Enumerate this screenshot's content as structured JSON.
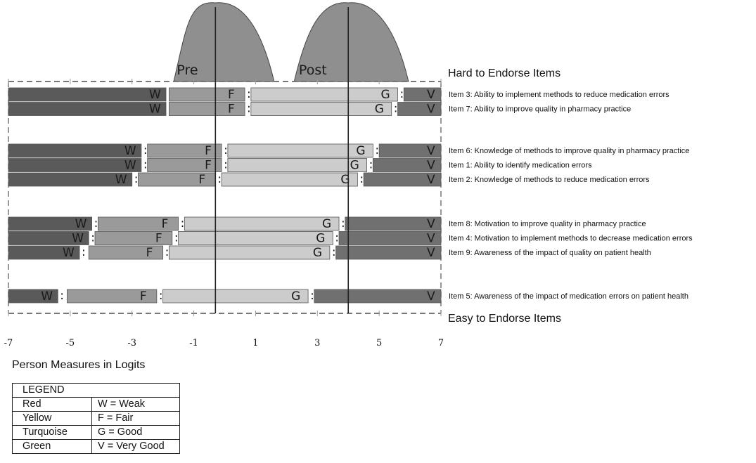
{
  "chart_data": {
    "type": "bar",
    "subtype": "stacked-horizontal-category-bands",
    "xlabel": "Person Measures in Logits",
    "xlim": [
      -7,
      7
    ],
    "xticks": [
      -7,
      -5,
      -3,
      -1,
      1,
      3,
      5,
      7
    ],
    "top_label": "Hard to Endorse Items",
    "bottom_label": "Easy to Endorse Items",
    "reference_lines": [
      {
        "name": "Pre",
        "x": -0.3
      },
      {
        "name": "Post",
        "x": 4.0
      }
    ],
    "distribution_labels": [
      "Pre",
      "Post"
    ],
    "groups": [
      {
        "items": [
          {
            "label": "Item 3: Ability to implement methods to reduce medication errors",
            "segments": [
              {
                "code": "W",
                "from": -7,
                "to": -1.9
              },
              {
                "code": "F",
                "from": -1.8,
                "to": 0.65
              },
              {
                "code": "G",
                "from": 0.85,
                "to": 5.6
              },
              {
                "code": "V",
                "from": 5.8,
                "to": 7
              }
            ]
          },
          {
            "label": "Item 7: Ability to improve quality in pharmacy practice",
            "segments": [
              {
                "code": "W",
                "from": -7,
                "to": -1.9
              },
              {
                "code": "F",
                "from": -1.8,
                "to": 0.65
              },
              {
                "code": "G",
                "from": 0.85,
                "to": 5.4
              },
              {
                "code": "V",
                "from": 5.6,
                "to": 7
              }
            ]
          }
        ]
      },
      {
        "items": [
          {
            "label": "Item 6: Knowledge of methods to improve quality in pharmacy practice",
            "segments": [
              {
                "code": "W",
                "from": -7,
                "to": -2.7
              },
              {
                "code": "F",
                "from": -2.5,
                "to": -0.1
              },
              {
                "code": "G",
                "from": 0.1,
                "to": 4.8
              },
              {
                "code": "V",
                "from": 5.0,
                "to": 7
              }
            ]
          },
          {
            "label": "Item 1: Ability to identify medication errors",
            "segments": [
              {
                "code": "W",
                "from": -7,
                "to": -2.7
              },
              {
                "code": "F",
                "from": -2.5,
                "to": -0.1
              },
              {
                "code": "G",
                "from": 0.1,
                "to": 4.6
              },
              {
                "code": "V",
                "from": 4.8,
                "to": 7
              }
            ]
          },
          {
            "label": "Item 2: Knowledge of methods to reduce medication errors",
            "segments": [
              {
                "code": "W",
                "from": -7,
                "to": -3.0
              },
              {
                "code": "F",
                "from": -2.8,
                "to": -0.3
              },
              {
                "code": "G",
                "from": -0.1,
                "to": 4.3
              },
              {
                "code": "V",
                "from": 4.5,
                "to": 7
              }
            ]
          }
        ]
      },
      {
        "items": [
          {
            "label": "Item 8: Motivation to improve quality in pharmacy practice",
            "segments": [
              {
                "code": "W",
                "from": -7,
                "to": -4.3
              },
              {
                "code": "F",
                "from": -4.1,
                "to": -1.5
              },
              {
                "code": "G",
                "from": -1.3,
                "to": 3.7
              },
              {
                "code": "V",
                "from": 3.9,
                "to": 7
              }
            ]
          },
          {
            "label": "Item 4: Motivation to implement methods to decrease medication errors",
            "segments": [
              {
                "code": "W",
                "from": -7,
                "to": -4.4
              },
              {
                "code": "F",
                "from": -4.2,
                "to": -1.7
              },
              {
                "code": "G",
                "from": -1.5,
                "to": 3.5
              },
              {
                "code": "V",
                "from": 3.7,
                "to": 7
              }
            ]
          },
          {
            "label": "Item 9: Awareness of the impact of quality on patient health",
            "segments": [
              {
                "code": "W",
                "from": -7,
                "to": -4.7
              },
              {
                "code": "F",
                "from": -4.4,
                "to": -2.0
              },
              {
                "code": "G",
                "from": -1.8,
                "to": 3.4
              },
              {
                "code": "V",
                "from": 3.6,
                "to": 7
              }
            ]
          }
        ]
      },
      {
        "items": [
          {
            "label": "Item 5: Awareness of the impact of medication errors on patient health",
            "segments": [
              {
                "code": "W",
                "from": -7,
                "to": -5.4
              },
              {
                "code": "F",
                "from": -5.1,
                "to": -2.2
              },
              {
                "code": "G",
                "from": -2.0,
                "to": 2.7
              },
              {
                "code": "V",
                "from": 2.9,
                "to": 7
              }
            ]
          }
        ]
      }
    ],
    "category_colors": {
      "W": "#5a5a5a",
      "F": "#9a9a9a",
      "G": "#cccccc",
      "V": "#707070"
    },
    "legend": {
      "title": "LEGEND",
      "entries": [
        {
          "color": "Red",
          "meaning": "W = Weak"
        },
        {
          "color": "Yellow",
          "meaning": "F = Fair"
        },
        {
          "color": "Turquoise",
          "meaning": "G = Good"
        },
        {
          "color": "Green",
          "meaning": "V = Very Good"
        }
      ]
    }
  }
}
